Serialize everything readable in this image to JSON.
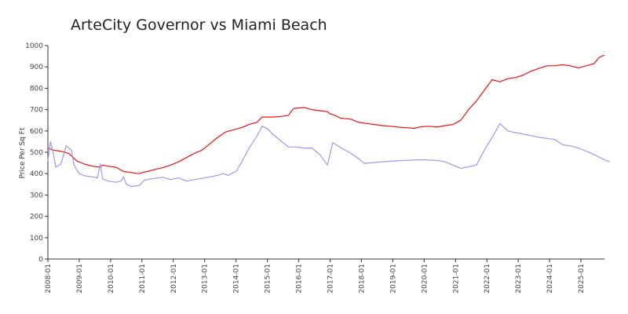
{
  "chart_data": {
    "type": "line",
    "title": "ArteCity Governor vs Miami Beach",
    "ylabel": "Price Per Sq Ft",
    "xlabel": "",
    "ylim": [
      0,
      1000
    ],
    "xlim": [
      "2008-01",
      "2025-10"
    ],
    "yticks": [
      "0",
      "100",
      "200",
      "300",
      "400",
      "500",
      "600",
      "700",
      "800",
      "900",
      "1000"
    ],
    "xticks": [
      "2008-01",
      "2009-01",
      "2010-01",
      "2011-01",
      "2012-01",
      "2013-01",
      "2014-01",
      "2015-01",
      "2016-01",
      "2017-01",
      "2018-01",
      "2019-01",
      "2020-01",
      "2021-01",
      "2022-01",
      "2023-01",
      "2024-01",
      "2025-01"
    ],
    "grid": false,
    "legend": "none",
    "series": [
      {
        "color": "#ee1111",
        "points": [
          [
            "2008-01",
            520
          ],
          [
            "2008-03",
            510
          ],
          [
            "2008-06",
            505
          ],
          [
            "2008-09",
            495
          ],
          [
            "2008-12",
            460
          ],
          [
            "2009-03",
            445
          ],
          [
            "2009-06",
            435
          ],
          [
            "2009-09",
            430
          ],
          [
            "2009-10",
            440
          ],
          [
            "2009-12",
            435
          ],
          [
            "2010-03",
            430
          ],
          [
            "2010-06",
            410
          ],
          [
            "2010-09",
            405
          ],
          [
            "2010-12",
            400
          ],
          [
            "2011-01",
            405
          ],
          [
            "2011-03",
            410
          ],
          [
            "2011-06",
            420
          ],
          [
            "2011-09",
            428
          ],
          [
            "2011-12",
            440
          ],
          [
            "2012-03",
            455
          ],
          [
            "2012-06",
            475
          ],
          [
            "2012-09",
            495
          ],
          [
            "2012-12",
            510
          ],
          [
            "2013-03",
            540
          ],
          [
            "2013-06",
            570
          ],
          [
            "2013-09",
            595
          ],
          [
            "2013-12",
            605
          ],
          [
            "2014-03",
            615
          ],
          [
            "2014-06",
            630
          ],
          [
            "2014-09",
            640
          ],
          [
            "2014-11",
            665
          ],
          [
            "2015-03",
            665
          ],
          [
            "2015-06",
            668
          ],
          [
            "2015-09",
            672
          ],
          [
            "2015-11",
            705
          ],
          [
            "2016-03",
            710
          ],
          [
            "2016-06",
            700
          ],
          [
            "2016-09",
            695
          ],
          [
            "2016-12",
            690
          ],
          [
            "2017-01",
            680
          ],
          [
            "2017-03",
            672
          ],
          [
            "2017-05",
            660
          ],
          [
            "2017-09",
            655
          ],
          [
            "2017-12",
            640
          ],
          [
            "2018-03",
            635
          ],
          [
            "2018-06",
            630
          ],
          [
            "2018-09",
            625
          ],
          [
            "2018-12",
            622
          ],
          [
            "2019-03",
            618
          ],
          [
            "2019-06",
            615
          ],
          [
            "2019-09",
            612
          ],
          [
            "2019-12",
            620
          ],
          [
            "2020-03",
            622
          ],
          [
            "2020-06",
            618
          ],
          [
            "2020-09",
            625
          ],
          [
            "2020-12",
            630
          ],
          [
            "2021-03",
            650
          ],
          [
            "2021-06",
            700
          ],
          [
            "2021-09",
            740
          ],
          [
            "2021-12",
            790
          ],
          [
            "2022-03",
            840
          ],
          [
            "2022-06",
            830
          ],
          [
            "2022-09",
            845
          ],
          [
            "2022-12",
            850
          ],
          [
            "2023-03",
            862
          ],
          [
            "2023-06",
            880
          ],
          [
            "2023-09",
            893
          ],
          [
            "2023-12",
            905
          ],
          [
            "2024-03",
            905
          ],
          [
            "2024-06",
            910
          ],
          [
            "2024-09",
            905
          ],
          [
            "2024-12",
            895
          ],
          [
            "2025-03",
            905
          ],
          [
            "2025-06",
            915
          ],
          [
            "2025-08",
            945
          ],
          [
            "2025-10",
            955
          ]
        ]
      },
      {
        "color": "#9999ee",
        "points": [
          [
            "2008-01",
            460
          ],
          [
            "2008-02",
            550
          ],
          [
            "2008-03",
            500
          ],
          [
            "2008-04",
            430
          ],
          [
            "2008-06",
            445
          ],
          [
            "2008-08",
            530
          ],
          [
            "2008-10",
            510
          ],
          [
            "2008-11",
            440
          ],
          [
            "2009-01",
            400
          ],
          [
            "2009-03",
            390
          ],
          [
            "2009-06",
            385
          ],
          [
            "2009-08",
            380
          ],
          [
            "2009-09",
            445
          ],
          [
            "2009-10",
            375
          ],
          [
            "2009-12",
            365
          ],
          [
            "2010-03",
            360
          ],
          [
            "2010-05",
            365
          ],
          [
            "2010-06",
            385
          ],
          [
            "2010-07",
            350
          ],
          [
            "2010-09",
            340
          ],
          [
            "2010-12",
            345
          ],
          [
            "2011-02",
            370
          ],
          [
            "2011-06",
            378
          ],
          [
            "2011-09",
            383
          ],
          [
            "2011-12",
            372
          ],
          [
            "2012-03",
            380
          ],
          [
            "2012-06",
            365
          ],
          [
            "2012-09",
            372
          ],
          [
            "2012-12",
            378
          ],
          [
            "2013-03",
            385
          ],
          [
            "2013-06",
            392
          ],
          [
            "2013-08",
            400
          ],
          [
            "2013-10",
            392
          ],
          [
            "2013-12",
            405
          ],
          [
            "2014-01",
            410
          ],
          [
            "2014-03",
            450
          ],
          [
            "2014-06",
            520
          ],
          [
            "2014-09",
            575
          ],
          [
            "2014-11",
            622
          ],
          [
            "2015-01",
            610
          ],
          [
            "2015-03",
            585
          ],
          [
            "2015-06",
            555
          ],
          [
            "2015-09",
            525
          ],
          [
            "2015-12",
            525
          ],
          [
            "2016-03",
            520
          ],
          [
            "2016-06",
            520
          ],
          [
            "2016-09",
            490
          ],
          [
            "2016-12",
            440
          ],
          [
            "2017-02",
            545
          ],
          [
            "2017-06",
            515
          ],
          [
            "2017-09",
            495
          ],
          [
            "2017-12",
            470
          ],
          [
            "2018-02",
            448
          ],
          [
            "2018-06",
            452
          ],
          [
            "2018-09",
            455
          ],
          [
            "2018-12",
            458
          ],
          [
            "2019-06",
            462
          ],
          [
            "2019-12",
            465
          ],
          [
            "2020-06",
            462
          ],
          [
            "2020-09",
            455
          ],
          [
            "2020-12",
            440
          ],
          [
            "2021-03",
            425
          ],
          [
            "2021-06",
            432
          ],
          [
            "2021-09",
            440
          ],
          [
            "2021-12",
            510
          ],
          [
            "2022-03",
            570
          ],
          [
            "2022-06",
            635
          ],
          [
            "2022-09",
            600
          ],
          [
            "2022-12",
            592
          ],
          [
            "2023-03",
            585
          ],
          [
            "2023-06",
            578
          ],
          [
            "2023-09",
            570
          ],
          [
            "2023-12",
            565
          ],
          [
            "2024-03",
            560
          ],
          [
            "2024-06",
            535
          ],
          [
            "2024-09",
            530
          ],
          [
            "2024-12",
            520
          ],
          [
            "2025-03",
            505
          ],
          [
            "2025-06",
            490
          ],
          [
            "2025-09",
            470
          ],
          [
            "2025-12",
            455
          ]
        ]
      }
    ]
  }
}
